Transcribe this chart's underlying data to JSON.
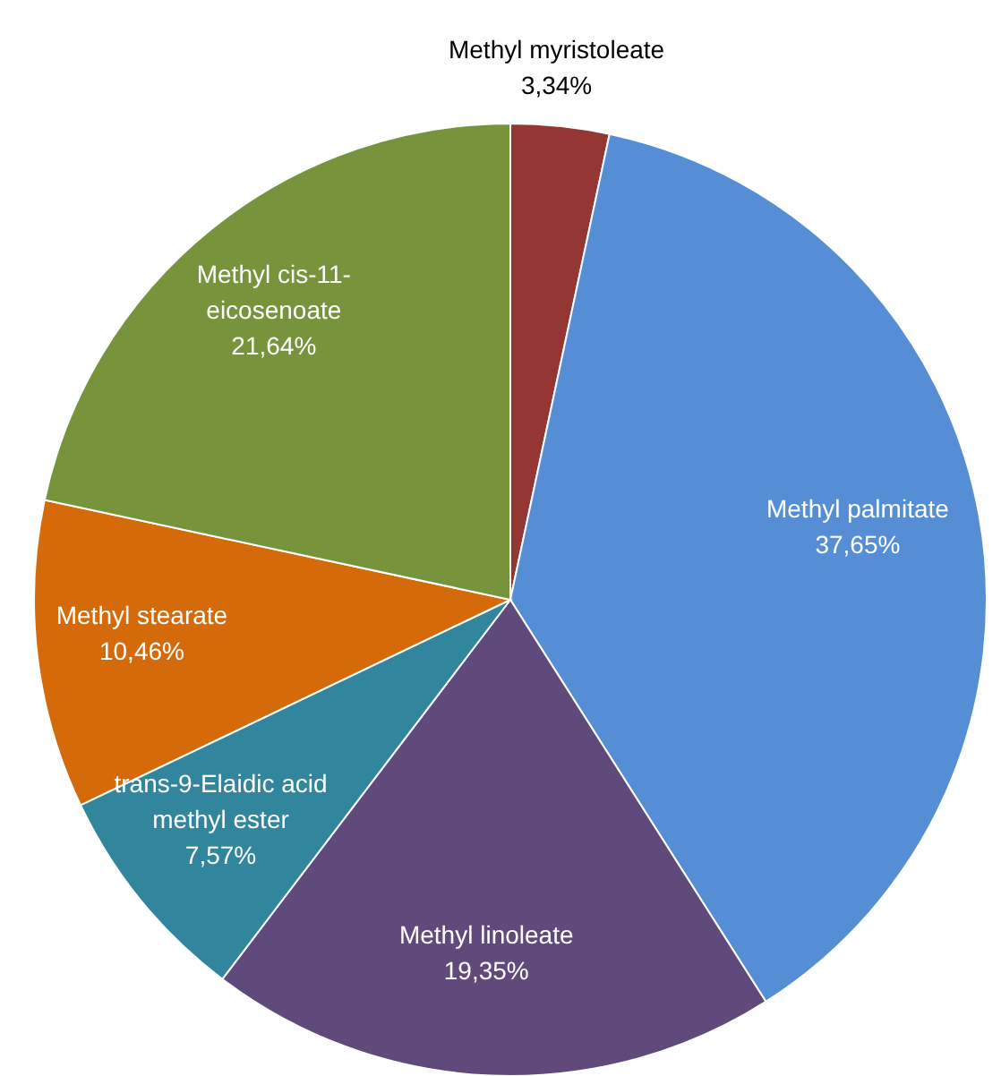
{
  "chart_data": {
    "type": "pie",
    "categories": [
      "Methyl myristoleate",
      "Methyl palmitate",
      "Methyl linoleate",
      "trans-9-Elaidic acid methyl ester",
      "Methyl stearate",
      "Methyl cis-11-eicosenoate"
    ],
    "values": [
      3.34,
      37.65,
      19.35,
      7.57,
      10.46,
      21.64
    ],
    "value_labels": [
      "3,34%",
      "37,65%",
      "19,35%",
      "7,57%",
      "10,46%",
      "21,64%"
    ],
    "colors": [
      "#943634",
      "#558ed5",
      "#604a7b",
      "#31859c",
      "#d46a0a",
      "#77933c"
    ],
    "legend": false
  }
}
